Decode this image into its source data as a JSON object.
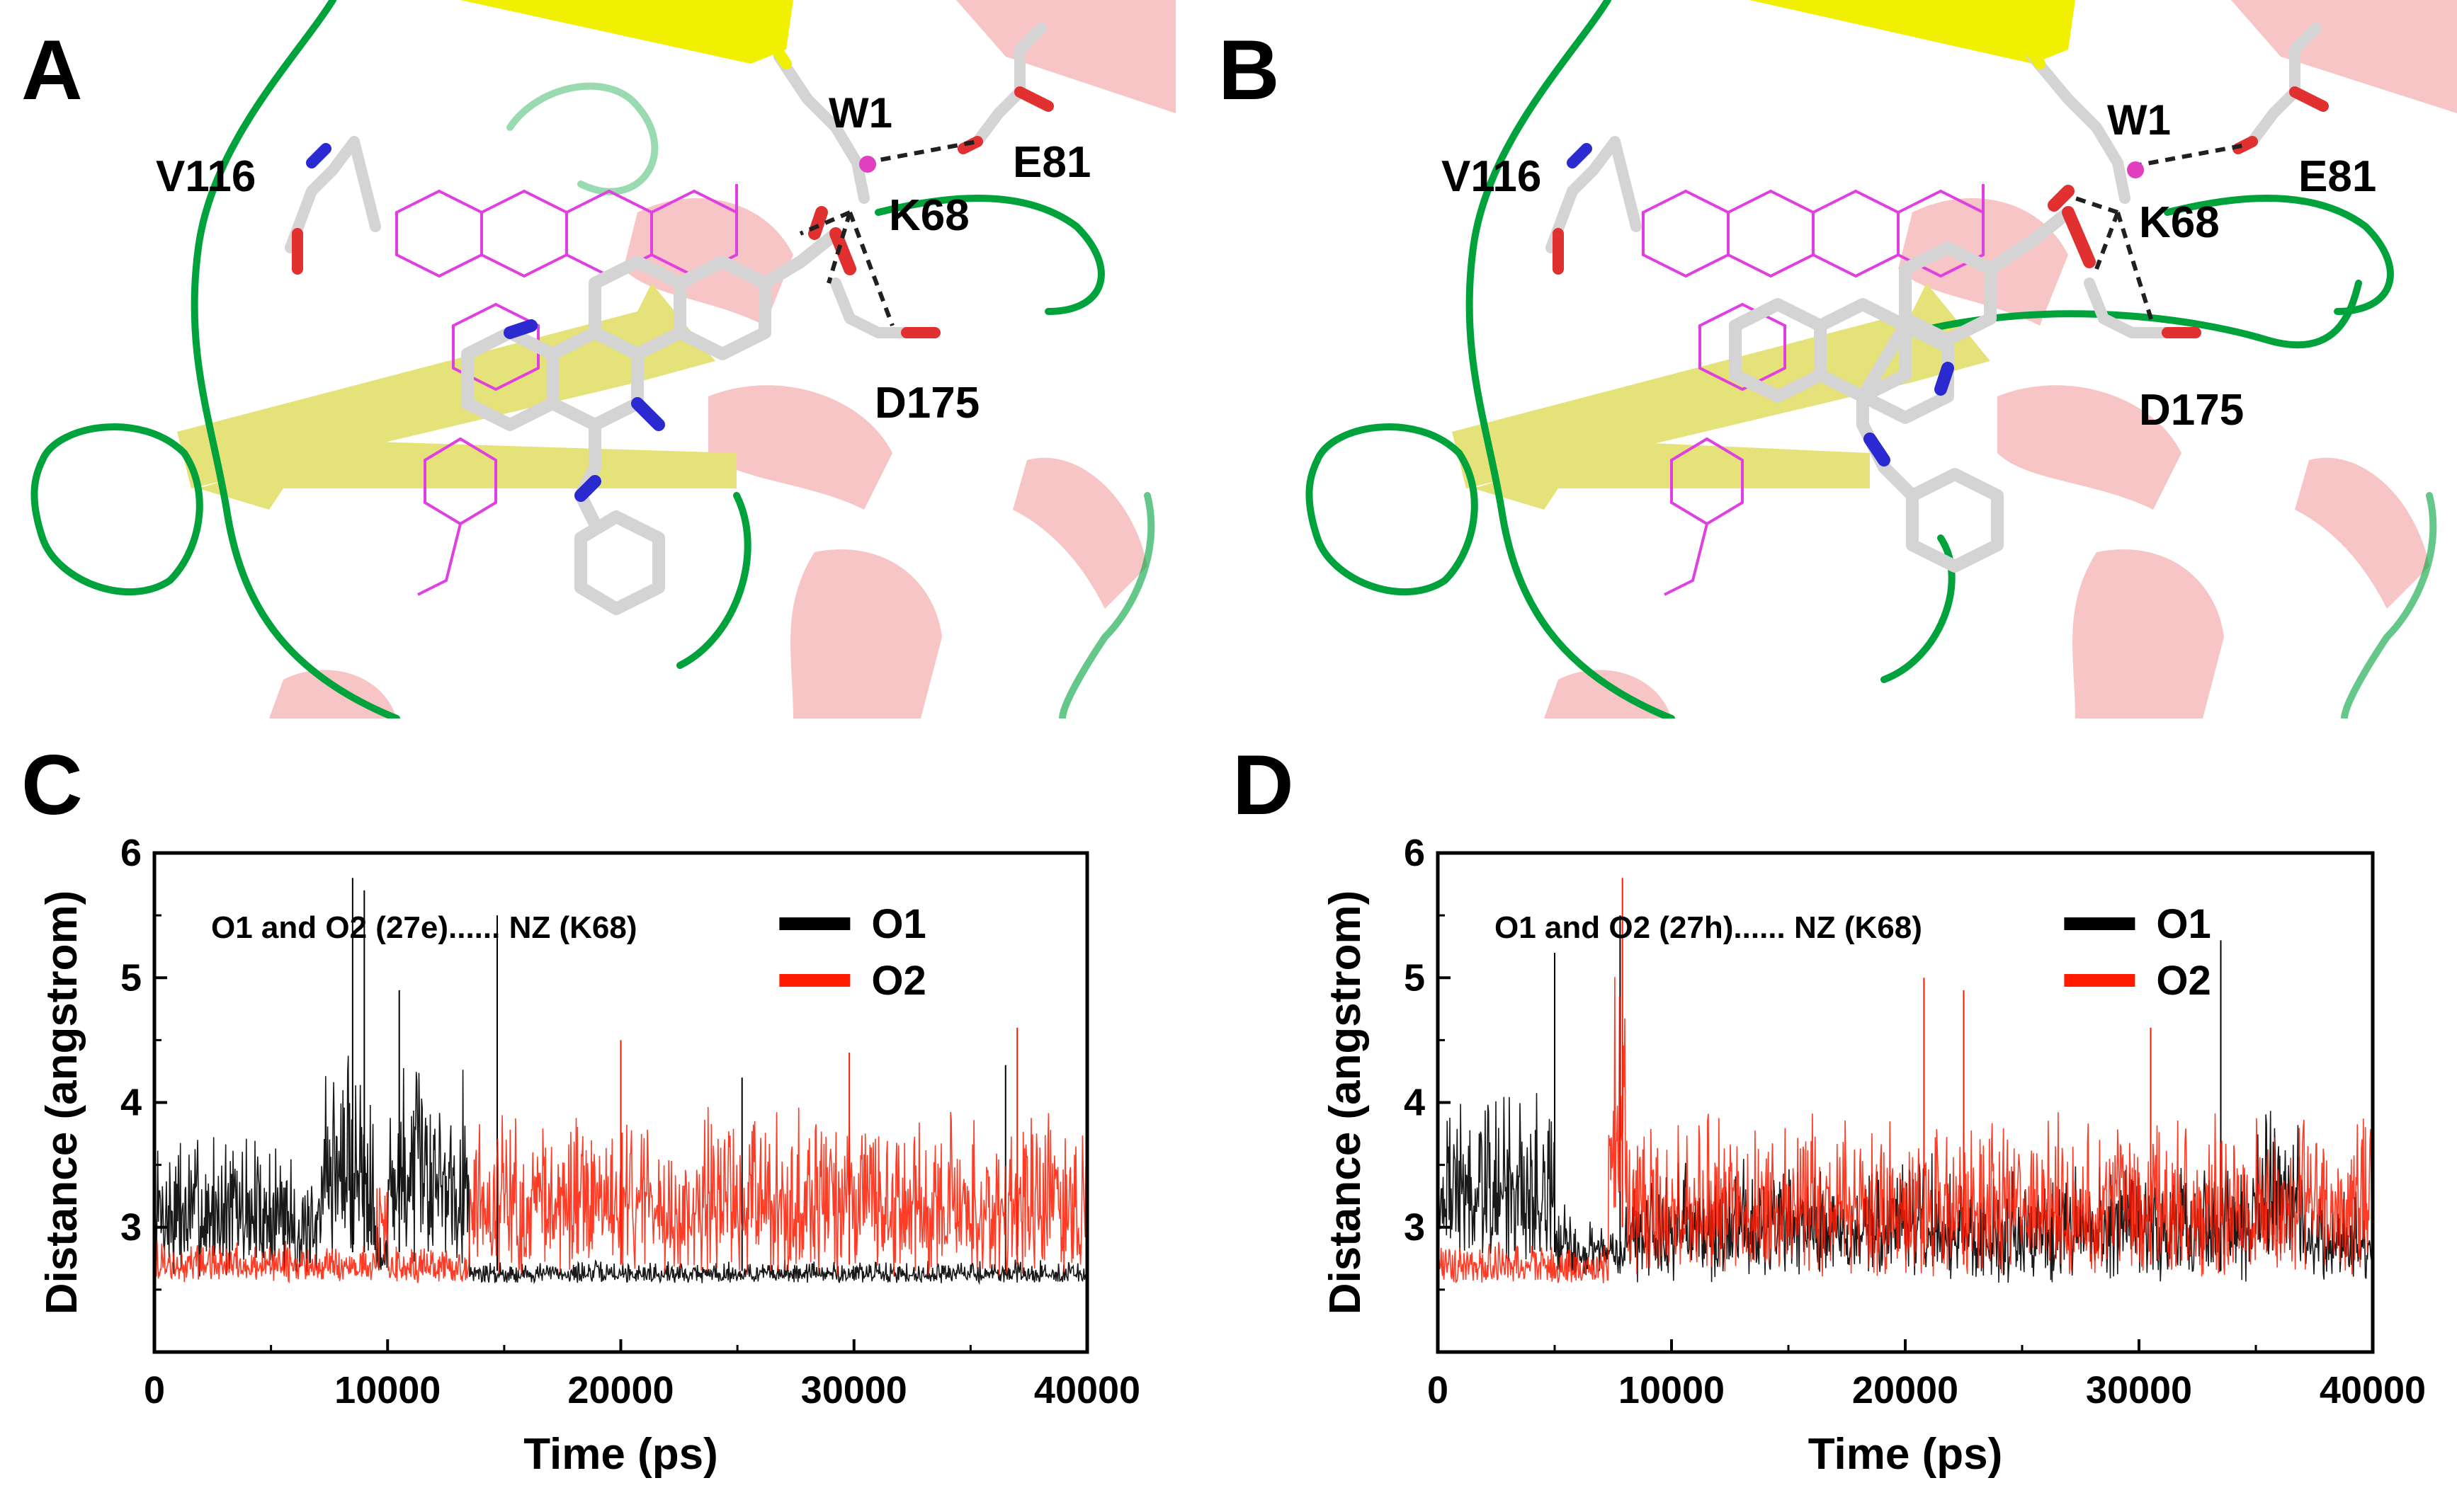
{
  "panels": {
    "A": {
      "letter": "A",
      "residues": {
        "v116": "V116",
        "w1": "W1",
        "e81": "E81",
        "k68": "K68",
        "d175": "D175"
      }
    },
    "B": {
      "letter": "B",
      "residues": {
        "v116": "V116",
        "w1": "W1",
        "e81": "E81",
        "k68": "K68",
        "d175": "D175"
      }
    },
    "C": {
      "letter": "C"
    },
    "D": {
      "letter": "D"
    }
  },
  "colors": {
    "O1": "#000000",
    "O2": "#ff1a00",
    "helix": "#e85a5a",
    "sheet_bright": "#f0f000",
    "sheet_pale": "#e6e27a",
    "loop": "#00a23c",
    "ligand_ref": "#e040e0",
    "carbon": "#d4d4d4",
    "nitrogen": "#2a2ad0",
    "oxygen": "#e03030"
  },
  "chart_data": [
    {
      "panel": "C",
      "type": "line",
      "annotation": "O1 and O2 (27e)...... NZ (K68)",
      "xlabel": "Time (ps)",
      "ylabel": "Distance (angstrom)",
      "xlim": [
        0,
        40000
      ],
      "ylim": [
        2.0,
        6.0
      ],
      "xticks": [
        0,
        10000,
        20000,
        30000,
        40000
      ],
      "yticks": [
        3,
        4,
        5,
        6
      ],
      "legend_position": "top-right",
      "series": [
        {
          "name": "O1",
          "color": "#000000",
          "segments": [
            {
              "x": [
                0,
                6000
              ],
              "low": 2.6,
              "high": 3.9
            },
            {
              "x": [
                6000,
                7000
              ],
              "low": 2.6,
              "high": 3.4
            },
            {
              "x": [
                7000,
                9500
              ],
              "low": 2.7,
              "high": 4.6
            },
            {
              "x": [
                9500,
                10000
              ],
              "low": 2.5,
              "high": 3.1
            },
            {
              "x": [
                10000,
                13500
              ],
              "low": 2.7,
              "high": 4.5
            },
            {
              "x": [
                13500,
                40000
              ],
              "low": 2.55,
              "high": 2.75
            }
          ],
          "spikes": [
            [
              8500,
              5.8
            ],
            [
              9000,
              5.7
            ],
            [
              10500,
              4.9
            ],
            [
              14700,
              5.5
            ],
            [
              25200,
              4.2
            ],
            [
              36500,
              4.3
            ]
          ]
        },
        {
          "name": "O2",
          "color": "#ff1a00",
          "segments": [
            {
              "x": [
                0,
                9500
              ],
              "low": 2.55,
              "high": 2.9
            },
            {
              "x": [
                9500,
                10000
              ],
              "low": 2.6,
              "high": 3.7
            },
            {
              "x": [
                10000,
                13500
              ],
              "low": 2.55,
              "high": 2.85
            },
            {
              "x": [
                13500,
                40000
              ],
              "low": 2.6,
              "high": 4.0
            }
          ],
          "spikes": [
            [
              20000,
              4.5
            ],
            [
              29800,
              4.4
            ],
            [
              37000,
              4.6
            ]
          ]
        }
      ]
    },
    {
      "panel": "D",
      "type": "line",
      "annotation": "O1 and O2 (27h)...... NZ (K68)",
      "xlabel": "Time (ps)",
      "ylabel": "Distance (angstrom)",
      "xlim": [
        0,
        40000
      ],
      "ylim": [
        2.0,
        6.0
      ],
      "xticks": [
        0,
        10000,
        20000,
        30000,
        40000
      ],
      "yticks": [
        3,
        4,
        5,
        6
      ],
      "legend_position": "top-right",
      "series": [
        {
          "name": "O1",
          "color": "#000000",
          "segments": [
            {
              "x": [
                0,
                5000
              ],
              "low": 2.7,
              "high": 4.2
            },
            {
              "x": [
                5000,
                7500
              ],
              "low": 2.6,
              "high": 3.2
            },
            {
              "x": [
                7500,
                8000
              ],
              "low": 2.6,
              "high": 3.0
            },
            {
              "x": [
                8000,
                35000
              ],
              "low": 2.55,
              "high": 3.6
            },
            {
              "x": [
                35000,
                37000
              ],
              "low": 2.7,
              "high": 4.1
            },
            {
              "x": [
                37000,
                40000
              ],
              "low": 2.55,
              "high": 3.4
            }
          ],
          "spikes": [
            [
              5000,
              5.2
            ],
            [
              7800,
              5.5
            ],
            [
              33500,
              5.3
            ]
          ]
        },
        {
          "name": "O2",
          "color": "#ff1a00",
          "segments": [
            {
              "x": [
                0,
                7300
              ],
              "low": 2.55,
              "high": 2.9
            },
            {
              "x": [
                7300,
                8100
              ],
              "low": 2.9,
              "high": 5.2
            },
            {
              "x": [
                8100,
                40000
              ],
              "low": 2.6,
              "high": 4.0
            }
          ],
          "spikes": [
            [
              7900,
              5.8
            ],
            [
              20800,
              5.0
            ],
            [
              22500,
              4.9
            ],
            [
              30500,
              4.6
            ]
          ]
        }
      ]
    }
  ]
}
